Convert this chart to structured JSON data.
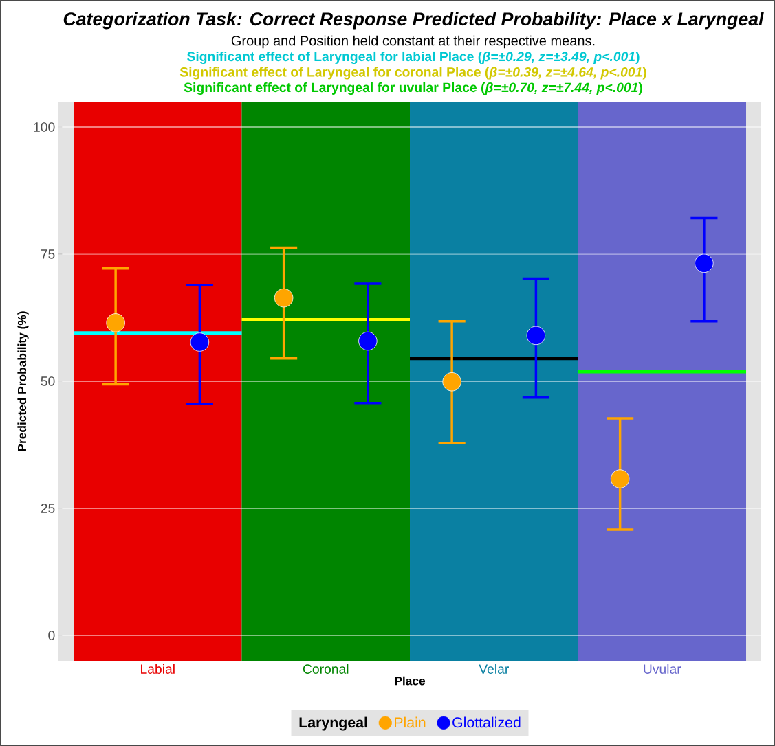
{
  "chart_data": {
    "type": "scatter",
    "title": "Categorization Task: Correct Response Predicted Probability: Place x Laryngeal",
    "subtitle": "Group and Position held constant at their respective means.",
    "annotations": [
      "Significant effect of Laryngeal for labial Place (*β=±0.29, z=±3.49, p<.001*)",
      "Significant effect of Laryngeal for coronal Place (*β=±0.39, z=±4.64, p<.001*)",
      "Significant effect of Laryngeal for uvular Place (*β=±0.70, z=±7.44, p<.001*)"
    ],
    "xlabel": "Place",
    "ylabel": "Predicted Probability (%)",
    "legend_title": "Laryngeal",
    "categories": [
      "Labial",
      "Coronal",
      "Velar",
      "Uvular"
    ],
    "series": [
      {
        "name": "Plain",
        "color": "#ffa500",
        "values": [
          61.5,
          66.4,
          49.9,
          30.8
        ],
        "errors": [
          [
            49.4,
            72.2
          ],
          [
            54.5,
            76.3
          ],
          [
            37.8,
            61.8
          ],
          [
            20.8,
            42.7
          ]
        ]
      },
      {
        "name": "Glottalized",
        "color": "#0000ff",
        "values": [
          57.7,
          57.9,
          59.0,
          73.2
        ],
        "errors": [
          [
            45.5,
            68.9
          ],
          [
            45.7,
            69.2
          ],
          [
            46.8,
            70.2
          ],
          [
            61.8,
            82.1
          ]
        ]
      }
    ],
    "ylim": [
      -5,
      105
    ],
    "yticks": [
      0,
      25,
      50,
      75,
      100
    ],
    "grid": "y",
    "legend": "bottom",
    "bands": [
      {
        "axis": "x",
        "from": "Labial",
        "to": "Labial",
        "color": "#e80000"
      },
      {
        "axis": "x",
        "from": "Coronal",
        "to": "Coronal",
        "color": "#008500"
      },
      {
        "axis": "x",
        "from": "Velar",
        "to": "Velar",
        "color": "#0a80a2"
      },
      {
        "axis": "x",
        "from": "Uvular",
        "to": "Uvular",
        "color": "#6766cc"
      }
    ],
    "ref_lines": [
      {
        "axis": "y",
        "value": 59.5,
        "color": "#00ffff"
      },
      {
        "axis": "y",
        "value": 62.1,
        "color": "#ffff00"
      },
      {
        "axis": "y",
        "value": 54.5,
        "color": "#000000"
      },
      {
        "axis": "y",
        "value": 51.9,
        "color": "#00ff00"
      }
    ]
  }
}
